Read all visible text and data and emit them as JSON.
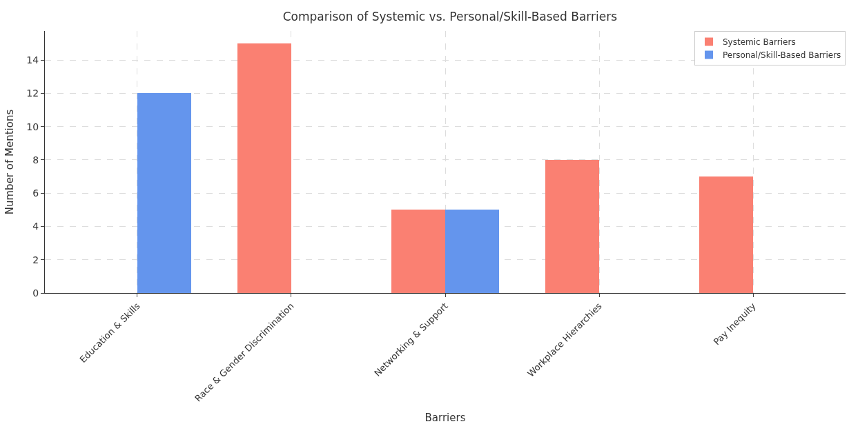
{
  "chart_data": {
    "type": "bar",
    "title": "Comparison of Systemic vs. Personal/Skill-Based Barriers",
    "xlabel": "Barriers",
    "ylabel": "Number of Mentions",
    "categories": [
      "Education & Skills",
      "Race & Gender Discrimination",
      "Networking & Support",
      "Workplace Hierarchies",
      "Pay Inequity"
    ],
    "series": [
      {
        "name": "Systemic Barriers",
        "color": "#fa8072",
        "values": [
          null,
          15,
          5,
          8,
          7
        ]
      },
      {
        "name": "Personal/Skill-Based Barriers",
        "color": "#6495ed",
        "values": [
          12,
          null,
          5,
          null,
          null
        ]
      }
    ],
    "ylim": [
      0,
      15.75
    ],
    "yticks": [
      0,
      2,
      4,
      6,
      8,
      10,
      12,
      14
    ],
    "grid": true,
    "legend": "top right"
  }
}
